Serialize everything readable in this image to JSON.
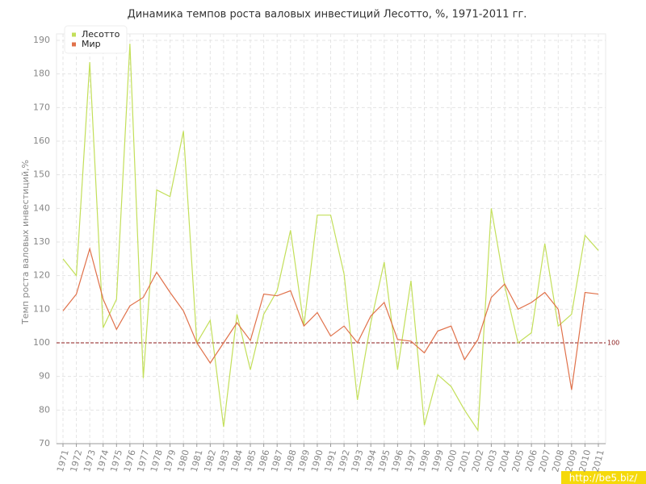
{
  "chart_data": {
    "type": "line",
    "title": "Динамика темпов роста валовых инвестиций Лесотто, %, 1971-2011 гг.",
    "y_label": "Темп роста валовых инвестиций,%",
    "categories": [
      "1971",
      "1972",
      "1973",
      "1974",
      "1975",
      "1976",
      "1977",
      "1978",
      "1979",
      "1980",
      "1981",
      "1982",
      "1983",
      "1984",
      "1985",
      "1986",
      "1987",
      "1988",
      "1989",
      "1990",
      "1991",
      "1992",
      "1993",
      "1994",
      "1995",
      "1996",
      "1997",
      "1998",
      "1999",
      "2000",
      "2001",
      "2002",
      "2003",
      "2004",
      "2005",
      "2006",
      "2007",
      "2008",
      "2009",
      "2010",
      "2011"
    ],
    "series": [
      {
        "name": "Лесотто",
        "color": "#c3df5a",
        "values": [
          125,
          120,
          183.5,
          104.5,
          113,
          189,
          89.5,
          145.5,
          143.5,
          163,
          100,
          106.7,
          75,
          108.5,
          92,
          108.5,
          115.5,
          133.5,
          105,
          138,
          138,
          120.5,
          83,
          106,
          124,
          92,
          118.5,
          75.5,
          90.5,
          87,
          80,
          74,
          140,
          117,
          100,
          103,
          129.5,
          105,
          108.5,
          132,
          127.5
        ]
      },
      {
        "name": "Мир",
        "color": "#e0714a",
        "values": [
          109.5,
          114.5,
          128,
          113,
          104,
          111,
          113.5,
          121,
          115,
          109.5,
          100,
          94,
          100,
          106,
          100.7,
          114.5,
          114,
          115.5,
          105,
          109,
          102,
          105,
          100,
          108,
          112,
          101,
          100.5,
          97,
          103.5,
          105,
          95,
          101,
          113.5,
          117.5,
          110,
          112,
          115,
          110,
          86,
          115,
          114.5
        ]
      }
    ],
    "ylim": [
      70,
      190
    ],
    "yticks": [
      70,
      80,
      90,
      100,
      110,
      120,
      130,
      140,
      150,
      160,
      170,
      180,
      190
    ],
    "reference_line": 100,
    "reference_color": "#8b1a1a",
    "grid": true,
    "legend": "top-left",
    "watermark": "http://be5.biz/"
  }
}
